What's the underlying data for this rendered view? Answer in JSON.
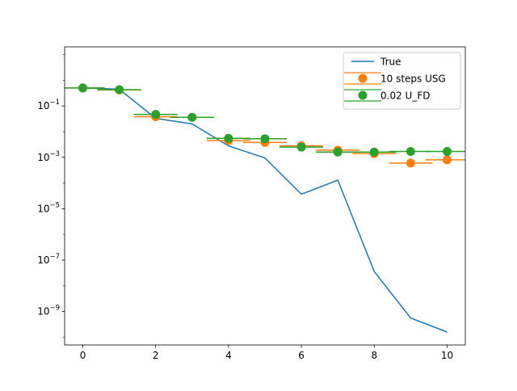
{
  "chart_data": {
    "type": "scatter",
    "title": "",
    "xlabel": "",
    "ylabel": "",
    "xlim": [
      -0.5,
      10.5
    ],
    "ylim_log10": [
      -10.3,
      1.3
    ],
    "yscale": "log",
    "grid": false,
    "legend_position": "top-right",
    "x_ticks": [
      0,
      2,
      4,
      6,
      8,
      10
    ],
    "x_tick_labels": [
      "0",
      "2",
      "4",
      "6",
      "8",
      "10"
    ],
    "y_ticks_log10": [
      -1,
      -3,
      -5,
      -7,
      -9
    ],
    "y_tick_labels": [
      {
        "base": "10",
        "exp": "−1"
      },
      {
        "base": "10",
        "exp": "−3"
      },
      {
        "base": "10",
        "exp": "−5"
      },
      {
        "base": "10",
        "exp": "−7"
      },
      {
        "base": "10",
        "exp": "−9"
      }
    ],
    "series": [
      {
        "name": "True",
        "kind": "line",
        "color": "#1f77b4",
        "x": [
          0,
          1,
          2,
          3,
          4,
          5,
          6,
          7,
          8,
          9,
          10
        ],
        "y": [
          0.5,
          0.45,
          0.033,
          0.02,
          0.0028,
          0.00095,
          3.7e-05,
          0.00013,
          3.6e-08,
          5.6e-10,
          1.6e-10
        ]
      },
      {
        "name": "10 steps USG",
        "kind": "errorbar",
        "color": "#ff7f0e",
        "points": [
          {
            "x": 0.0,
            "y": 0.5,
            "xerr": 0.6
          },
          {
            "x": 1.0,
            "y": 0.42,
            "xerr": 0.6
          },
          {
            "x": 2.0,
            "y": 0.038,
            "xerr": 0.6
          },
          {
            "x": 3.0,
            "y": 0.036,
            "xerr": 0.6
          },
          {
            "x": 4.0,
            "y": 0.0045,
            "xerr": 0.6
          },
          {
            "x": 5.0,
            "y": 0.0038,
            "xerr": 0.6
          },
          {
            "x": 6.0,
            "y": 0.0028,
            "xerr": 0.6
          },
          {
            "x": 7.0,
            "y": 0.0019,
            "xerr": 0.6
          },
          {
            "x": 8.0,
            "y": 0.0014,
            "xerr": 0.6
          },
          {
            "x": 9.0,
            "y": 0.0006,
            "xerr": 0.6
          },
          {
            "x": 10.0,
            "y": 0.0008,
            "xerr": 0.6
          }
        ]
      },
      {
        "name": "0.02 U_FD",
        "kind": "errorbar",
        "color": "#2ca02c",
        "points": [
          {
            "x": 0.0,
            "y": 0.5,
            "xerr": 0.6
          },
          {
            "x": 1.0,
            "y": 0.43,
            "xerr": 0.6
          },
          {
            "x": 2.0,
            "y": 0.047,
            "xerr": 0.6
          },
          {
            "x": 3.0,
            "y": 0.036,
            "xerr": 0.6
          },
          {
            "x": 4.0,
            "y": 0.0055,
            "xerr": 0.6
          },
          {
            "x": 5.0,
            "y": 0.0053,
            "xerr": 0.6
          },
          {
            "x": 6.0,
            "y": 0.0025,
            "xerr": 0.6
          },
          {
            "x": 7.0,
            "y": 0.0016,
            "xerr": 0.6
          },
          {
            "x": 8.0,
            "y": 0.0016,
            "xerr": 0.6
          },
          {
            "x": 9.0,
            "y": 0.0017,
            "xerr": 0.6
          },
          {
            "x": 10.0,
            "y": 0.0017,
            "xerr": 0.6
          }
        ]
      }
    ]
  }
}
